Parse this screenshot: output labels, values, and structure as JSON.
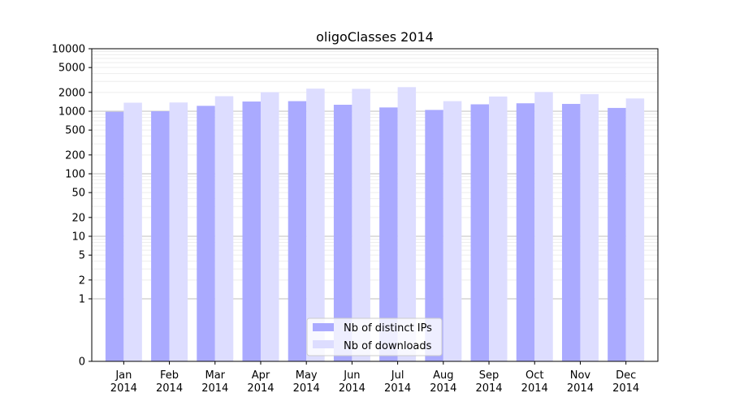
{
  "chart_data": {
    "type": "bar",
    "title": "oligoClasses 2014",
    "xlabel": "",
    "ylabel": "",
    "y_scale": "symlog",
    "ylim": [
      0,
      10000
    ],
    "y_ticks": [
      0,
      1,
      2,
      5,
      10,
      20,
      50,
      100,
      200,
      500,
      1000,
      2000,
      5000,
      10000
    ],
    "grid": true,
    "legend_position": "bottom-center",
    "categories": [
      [
        "Jan",
        "2014"
      ],
      [
        "Feb",
        "2014"
      ],
      [
        "Mar",
        "2014"
      ],
      [
        "Apr",
        "2014"
      ],
      [
        "May",
        "2014"
      ],
      [
        "Jun",
        "2014"
      ],
      [
        "Jul",
        "2014"
      ],
      [
        "Aug",
        "2014"
      ],
      [
        "Sep",
        "2014"
      ],
      [
        "Oct",
        "2014"
      ],
      [
        "Nov",
        "2014"
      ],
      [
        "Dec",
        "2014"
      ]
    ],
    "series": [
      {
        "name": "Nb of distinct IPs",
        "color": "#aaaaff",
        "values": [
          980,
          1000,
          1220,
          1430,
          1450,
          1270,
          1150,
          1050,
          1290,
          1340,
          1310,
          1130
        ]
      },
      {
        "name": "Nb of downloads",
        "color": "#ddddff",
        "values": [
          1370,
          1380,
          1740,
          2020,
          2300,
          2280,
          2430,
          1450,
          1720,
          2030,
          1880,
          1600
        ]
      }
    ]
  }
}
